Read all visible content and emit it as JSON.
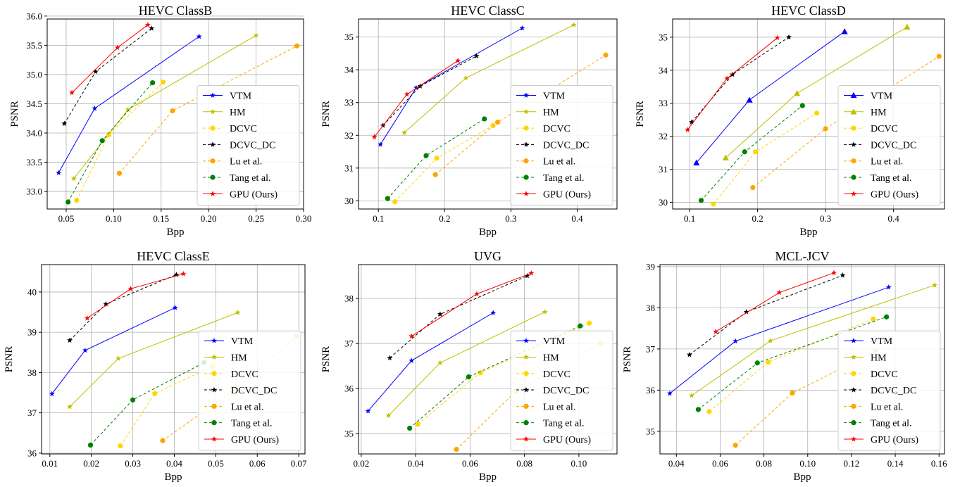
{
  "chart_data": [
    {
      "type": "line",
      "title": "HEVC ClassB",
      "xlabel": "Bpp",
      "ylabel": "PSNR",
      "xlim": [
        0.03,
        0.3
      ],
      "ylim": [
        32.7,
        35.95
      ],
      "xticks": [
        "0.05",
        "0.10",
        "0.15",
        "0.20",
        "0.25",
        "0.30"
      ],
      "yticks": [
        "33.0",
        "33.5",
        "34.0",
        "34.5",
        "35.0",
        "35.5",
        "36.0"
      ],
      "legend_position": "center-right",
      "series": [
        {
          "name": "VTM",
          "x": [
            0.042,
            0.08,
            0.19
          ],
          "y": [
            33.32,
            34.42,
            35.65
          ]
        },
        {
          "name": "HM",
          "x": [
            0.058,
            0.115,
            0.25
          ],
          "y": [
            33.22,
            34.4,
            35.67
          ]
        },
        {
          "name": "DCVC",
          "x": [
            0.061,
            0.095,
            0.152
          ],
          "y": [
            32.85,
            33.97,
            34.87
          ]
        },
        {
          "name": "DCVC_DC",
          "x": [
            0.048,
            0.081,
            0.14
          ],
          "y": [
            34.16,
            35.05,
            35.79
          ]
        },
        {
          "name": "Lu et al.",
          "x": [
            0.106,
            0.162,
            0.293
          ],
          "y": [
            33.31,
            34.38,
            35.49
          ]
        },
        {
          "name": "Tang et al.",
          "x": [
            0.052,
            0.088,
            0.141
          ],
          "y": [
            32.82,
            33.87,
            34.86
          ]
        },
        {
          "name": "GPU (Ours)",
          "x": [
            0.056,
            0.104,
            0.136
          ],
          "y": [
            34.69,
            35.46,
            35.85
          ]
        }
      ]
    },
    {
      "type": "line",
      "title": "HEVC ClassC",
      "xlabel": "Bpp",
      "ylabel": "PSNR",
      "xlim": [
        0.07,
        0.46
      ],
      "ylim": [
        29.75,
        35.55
      ],
      "xticks": [
        "0.1",
        "0.2",
        "0.3",
        "0.4"
      ],
      "yticks": [
        "30",
        "31",
        "32",
        "33",
        "34",
        "35"
      ],
      "legend_position": "center-right",
      "series": [
        {
          "name": "VTM",
          "x": [
            0.103,
            0.157,
            0.317
          ],
          "y": [
            31.72,
            33.45,
            35.27
          ]
        },
        {
          "name": "HM",
          "x": [
            0.139,
            0.232,
            0.395
          ],
          "y": [
            32.08,
            33.75,
            35.37
          ]
        },
        {
          "name": "DCVC",
          "x": [
            0.125,
            0.188,
            0.273
          ],
          "y": [
            29.97,
            31.3,
            32.3
          ]
        },
        {
          "name": "DCVC_DC",
          "x": [
            0.107,
            0.163,
            0.248
          ],
          "y": [
            32.3,
            33.5,
            34.42
          ]
        },
        {
          "name": "Lu et al.",
          "x": [
            0.186,
            0.28,
            0.443
          ],
          "y": [
            30.8,
            32.4,
            34.45
          ]
        },
        {
          "name": "Tang et al.",
          "x": [
            0.114,
            0.172,
            0.26
          ],
          "y": [
            30.07,
            31.38,
            32.5
          ]
        },
        {
          "name": "GPU (Ours)",
          "x": [
            0.094,
            0.143,
            0.22
          ],
          "y": [
            31.95,
            33.25,
            34.28
          ]
        }
      ]
    },
    {
      "type": "line",
      "title": "HEVC ClassD",
      "xlabel": "Bpp",
      "ylabel": "PSNR",
      "xlim": [
        0.075,
        0.475
      ],
      "ylim": [
        29.8,
        35.55
      ],
      "xticks": [
        "0.1",
        "0.2",
        "0.3",
        "0.4"
      ],
      "yticks": [
        "30",
        "31",
        "32",
        "33",
        "34",
        "35"
      ],
      "legend_position": "center-right",
      "series": [
        {
          "name": "VTM",
          "x": [
            0.11,
            0.188,
            0.328
          ],
          "y": [
            31.2,
            33.1,
            35.17
          ]
        },
        {
          "name": "HM",
          "x": [
            0.153,
            0.258,
            0.42
          ],
          "y": [
            31.35,
            33.3,
            35.31
          ]
        },
        {
          "name": "DCVC",
          "x": [
            0.135,
            0.197,
            0.287
          ],
          "y": [
            29.95,
            31.53,
            32.7
          ]
        },
        {
          "name": "DCVC_DC",
          "x": [
            0.103,
            0.163,
            0.246
          ],
          "y": [
            32.43,
            33.87,
            35.0
          ]
        },
        {
          "name": "Lu et al.",
          "x": [
            0.193,
            0.3,
            0.467
          ],
          "y": [
            30.45,
            32.23,
            34.42
          ]
        },
        {
          "name": "Tang et al.",
          "x": [
            0.117,
            0.181,
            0.266
          ],
          "y": [
            30.06,
            31.53,
            32.93
          ]
        },
        {
          "name": "GPU (Ours)",
          "x": [
            0.097,
            0.155,
            0.229
          ],
          "y": [
            32.2,
            33.75,
            34.98
          ]
        }
      ]
    },
    {
      "type": "line",
      "title": "HEVC ClassE",
      "xlabel": "Bpp",
      "ylabel": "PSNR",
      "xlim": [
        0.008,
        0.0715
      ],
      "ylim": [
        35.98,
        40.68
      ],
      "xticks": [
        "0.01",
        "0.02",
        "0.03",
        "0.04",
        "0.05",
        "0.06",
        "0.07"
      ],
      "yticks": [
        "36",
        "37",
        "38",
        "39",
        "40"
      ],
      "legend_position": "center-right",
      "series": [
        {
          "name": "VTM",
          "x": [
            0.0105,
            0.0185,
            0.0402
          ],
          "y": [
            37.47,
            38.55,
            39.61
          ]
        },
        {
          "name": "HM",
          "x": [
            0.0148,
            0.0265,
            0.0553
          ],
          "y": [
            37.15,
            38.35,
            39.49
          ]
        },
        {
          "name": "DCVC",
          "x": [
            0.027,
            0.0353,
            0.0492
          ],
          "y": [
            36.18,
            37.48,
            38.15
          ]
        },
        {
          "name": "DCVC_DC",
          "x": [
            0.0148,
            0.0235,
            0.0405
          ],
          "y": [
            38.8,
            39.7,
            40.43
          ]
        },
        {
          "name": "Lu et al.",
          "x": [
            0.0372,
            0.0548,
            0.0695
          ],
          "y": [
            36.31,
            37.6,
            38.9
          ]
        },
        {
          "name": "Tang et al.",
          "x": [
            0.0198,
            0.03,
            0.0472
          ],
          "y": [
            36.2,
            37.32,
            38.25
          ]
        },
        {
          "name": "GPU (Ours)",
          "x": [
            0.019,
            0.0295,
            0.0422
          ],
          "y": [
            39.35,
            40.08,
            40.45
          ]
        }
      ]
    },
    {
      "type": "line",
      "title": "UVG",
      "xlabel": "Bpp",
      "ylabel": "PSNR",
      "xlim": [
        0.019,
        0.114
      ],
      "ylim": [
        34.55,
        38.75
      ],
      "xticks": [
        "0.02",
        "0.04",
        "0.06",
        "0.08",
        "0.10"
      ],
      "yticks": [
        "35",
        "36",
        "37",
        "38"
      ],
      "legend_position": "center-right",
      "series": [
        {
          "name": "VTM",
          "x": [
            0.0225,
            0.0385,
            0.0685
          ],
          "y": [
            35.5,
            36.62,
            37.68
          ]
        },
        {
          "name": "HM",
          "x": [
            0.03,
            0.049,
            0.0875
          ],
          "y": [
            35.4,
            36.57,
            37.7
          ]
        },
        {
          "name": "DCVC",
          "x": [
            0.0408,
            0.0638,
            0.1038
          ],
          "y": [
            35.21,
            36.35,
            37.45
          ]
        },
        {
          "name": "DCVC_DC",
          "x": [
            0.0305,
            0.049,
            0.081
          ],
          "y": [
            36.68,
            37.65,
            38.5
          ]
        },
        {
          "name": "Lu et al.",
          "x": [
            0.055,
            0.077,
            0.108
          ],
          "y": [
            34.65,
            35.95,
            37.0
          ]
        },
        {
          "name": "Tang et al.",
          "x": [
            0.0378,
            0.0595,
            0.1005
          ],
          "y": [
            35.12,
            36.26,
            37.39
          ]
        },
        {
          "name": "GPU (Ours)",
          "x": [
            0.0385,
            0.0625,
            0.0825
          ],
          "y": [
            37.16,
            38.1,
            38.56
          ]
        }
      ]
    },
    {
      "type": "line",
      "title": "MCL-JCV",
      "xlabel": "Bpp",
      "ylabel": "PSNR",
      "xlim": [
        0.0325,
        0.1625
      ],
      "ylim": [
        34.45,
        39.05
      ],
      "xticks": [
        "0.04",
        "0.06",
        "0.08",
        "0.10",
        "0.12",
        "0.14",
        "0.16"
      ],
      "yticks": [
        "35",
        "36",
        "37",
        "38",
        "39"
      ],
      "legend_position": "center-right",
      "series": [
        {
          "name": "VTM",
          "x": [
            0.037,
            0.067,
            0.137
          ],
          "y": [
            35.92,
            37.19,
            38.5
          ]
        },
        {
          "name": "HM",
          "x": [
            0.047,
            0.083,
            0.158
          ],
          "y": [
            35.87,
            37.2,
            38.55
          ]
        },
        {
          "name": "DCVC",
          "x": [
            0.055,
            0.082,
            0.13
          ],
          "y": [
            35.48,
            36.68,
            37.73
          ]
        },
        {
          "name": "DCVC_DC",
          "x": [
            0.046,
            0.072,
            0.116
          ],
          "y": [
            36.86,
            37.9,
            38.79
          ]
        },
        {
          "name": "Lu et al.",
          "x": [
            0.067,
            0.093,
            0.131
          ],
          "y": [
            34.66,
            35.93,
            36.95
          ]
        },
        {
          "name": "Tang et al.",
          "x": [
            0.05,
            0.077,
            0.136
          ],
          "y": [
            35.53,
            36.66,
            37.78
          ]
        },
        {
          "name": "GPU (Ours)",
          "x": [
            0.058,
            0.087,
            0.112
          ],
          "y": [
            37.42,
            38.37,
            38.85
          ]
        }
      ]
    }
  ],
  "series_styles": [
    {
      "color": "#0000ff",
      "dashed": false
    },
    {
      "color": "#bfbf00",
      "dashed": false
    },
    {
      "color": "#ffd700",
      "dashed": true
    },
    {
      "color": "#000000",
      "dashed": true
    },
    {
      "color": "#ffa500",
      "dashed": true
    },
    {
      "color": "#008000",
      "dashed": true
    },
    {
      "color": "#ff0000",
      "dashed": false
    }
  ]
}
